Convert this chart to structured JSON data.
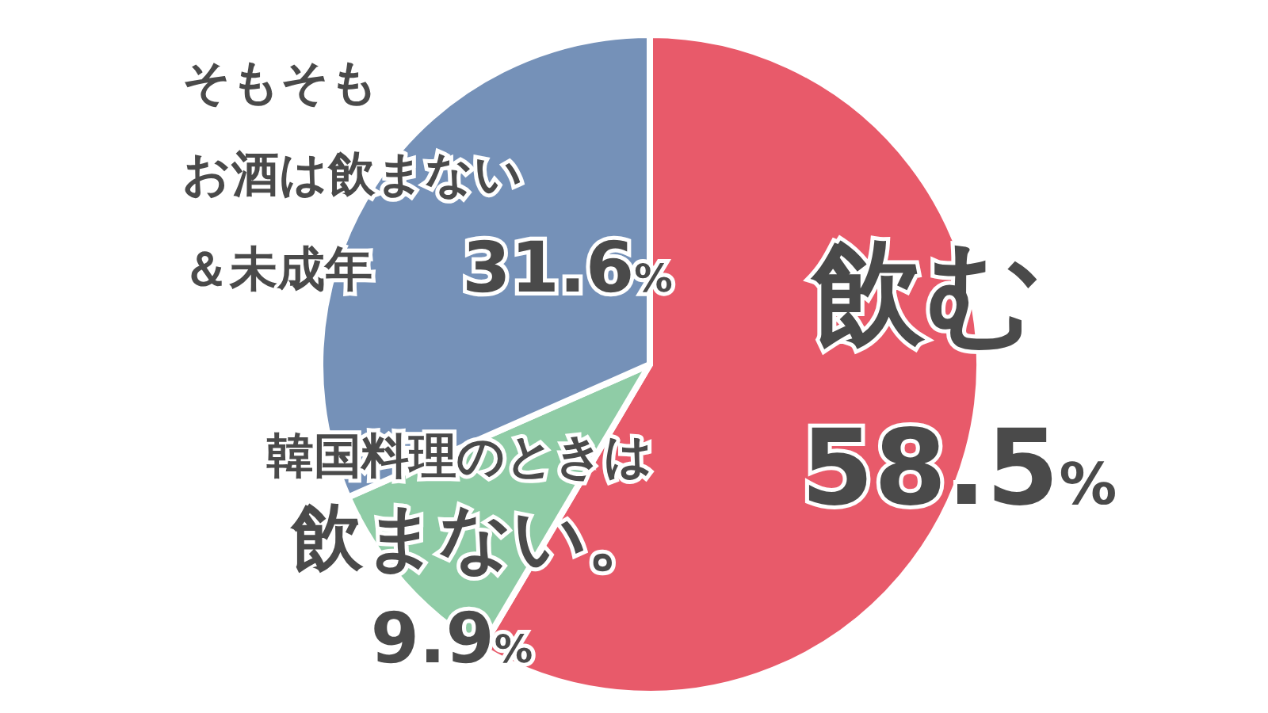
{
  "chart_data": {
    "type": "pie",
    "categories": [
      "飲む",
      "韓国料理のときは飲まない。",
      "そもそもお酒は飲まない＆未成年"
    ],
    "values": [
      58.5,
      9.9,
      31.6
    ],
    "value_labels": [
      "58.5%",
      "9.9%",
      "31.6%"
    ],
    "colors": [
      "#e85a6a",
      "#8fcca6",
      "#7591b8"
    ]
  }
}
